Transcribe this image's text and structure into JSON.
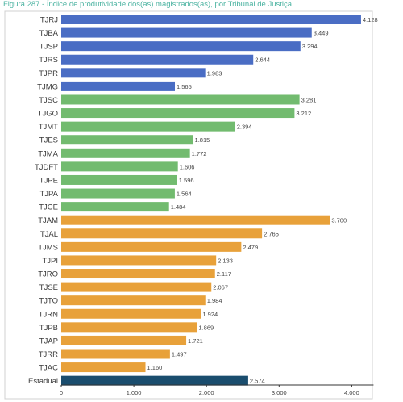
{
  "title": "Figura 287 - Índice de produtividade dos(as) magistrados(as), por Tribunal de Justiça",
  "colors": {
    "grande": "#4a6dc4",
    "medio": "#72bb6f",
    "pequeno": "#e8a13a",
    "estadual": "#1a4d6e",
    "title": "#4bb3a1",
    "grid": "#d0d0d0",
    "border": "#d0d0d0",
    "axis": "#333333"
  },
  "chart_data": {
    "type": "bar",
    "orientation": "horizontal",
    "title": "",
    "xlabel": "",
    "ylabel": "",
    "xlim": [
      0,
      4300
    ],
    "x_ticks": [
      0,
      1000,
      2000,
      3000,
      4000
    ],
    "x_tick_labels": [
      "0",
      "1.000",
      "2.000",
      "3.000",
      "4.000"
    ],
    "grid": false,
    "categories": [
      "TJRJ",
      "TJBA",
      "TJSP",
      "TJRS",
      "TJPR",
      "TJMG",
      "TJSC",
      "TJGO",
      "TJMT",
      "TJES",
      "TJMA",
      "TJDFT",
      "TJPE",
      "TJPA",
      "TJCE",
      "TJAM",
      "TJAL",
      "TJMS",
      "TJPI",
      "TJRO",
      "TJSE",
      "TJTO",
      "TJRN",
      "TJPB",
      "TJAP",
      "TJRR",
      "TJAC",
      "Estadual"
    ],
    "values": [
      4128,
      3449,
      3294,
      2644,
      1983,
      1565,
      3281,
      3212,
      2394,
      1815,
      1772,
      1606,
      1596,
      1564,
      1484,
      3700,
      2765,
      2479,
      2133,
      2117,
      2067,
      1984,
      1924,
      1869,
      1721,
      1497,
      1160,
      2574
    ],
    "value_labels": [
      "4.128",
      "3.449",
      "3.294",
      "2.644",
      "1.983",
      "1.565",
      "3.281",
      "3.212",
      "2.394",
      "1.815",
      "1.772",
      "1.606",
      "1.596",
      "1.564",
      "1.484",
      "3.700",
      "2.765",
      "2.479",
      "2.133",
      "2.117",
      "2.067",
      "1.984",
      "1.924",
      "1.869",
      "1.721",
      "1.497",
      "1.160",
      "2.574"
    ],
    "groups": [
      "grande",
      "grande",
      "grande",
      "grande",
      "grande",
      "grande",
      "medio",
      "medio",
      "medio",
      "medio",
      "medio",
      "medio",
      "medio",
      "medio",
      "medio",
      "pequeno",
      "pequeno",
      "pequeno",
      "pequeno",
      "pequeno",
      "pequeno",
      "pequeno",
      "pequeno",
      "pequeno",
      "pequeno",
      "pequeno",
      "pequeno",
      "estadual"
    ]
  }
}
